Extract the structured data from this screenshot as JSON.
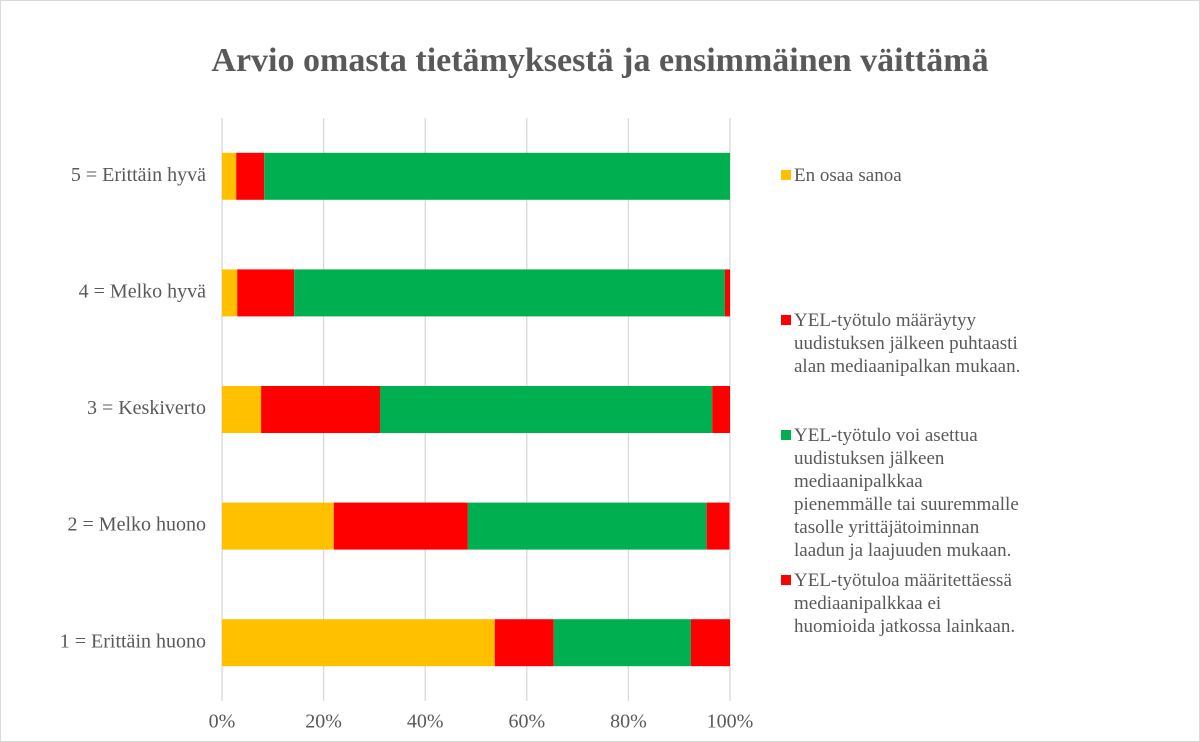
{
  "chart_data": {
    "type": "stacked_barh",
    "title": "Arvio omasta tietämyksestä ja ensimmäinen väittämä",
    "categories": [
      "1 = Erittäin huono",
      "2 = Melko huono",
      "3 = Keskiverto",
      "4 = Melko hyvä",
      "5 = Erittäin hyvä"
    ],
    "series": [
      {
        "name": "En osaa sanoa",
        "color": "#ffc000",
        "values": [
          53.7,
          22.0,
          7.7,
          3.0,
          2.8
        ]
      },
      {
        "name": "YEL-työtulo määräytyy uudistuksen jälkeen puhtaasti alan mediaanipalkan mukaan.",
        "color": "#ff0000",
        "values": [
          11.6,
          26.4,
          23.4,
          11.2,
          5.5
        ]
      },
      {
        "name": "YEL-työtulo voi asettua uudistuksen jälkeen mediaanipalkkaa pienemmälle tai suuremmalle tasolle yrittäjätoiminnan laadun ja laajuuden mukaan.",
        "color": "#00b050",
        "values": [
          27.0,
          47.0,
          65.4,
          84.8,
          91.7
        ]
      },
      {
        "name": "YEL-työtuloa määritettäessä mediaanipalkkaa ei huomioida jatkossa lainkaan.",
        "color": "#ff0000",
        "values": [
          7.7,
          4.5,
          3.5,
          1.0,
          0
        ]
      }
    ],
    "xlim": [
      0,
      100
    ],
    "xticks": [
      {
        "value": 0,
        "label": "0%"
      },
      {
        "value": 20,
        "label": "20%"
      },
      {
        "value": 40,
        "label": "40%"
      },
      {
        "value": 60,
        "label": "60%"
      },
      {
        "value": 80,
        "label": "80%"
      },
      {
        "value": 100,
        "label": "100%"
      }
    ],
    "grid": true,
    "legend": "right"
  }
}
